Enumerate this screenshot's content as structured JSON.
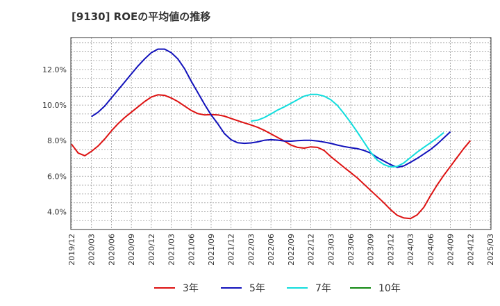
{
  "chart_data": {
    "type": "line",
    "title": "[9130]  ROEの平均値の推移",
    "xlabel": "",
    "ylabel": "",
    "ylim": [
      3.0,
      13.8
    ],
    "yticks": [
      {
        "value": 4.0,
        "label": "4.0%"
      },
      {
        "value": 6.0,
        "label": "6.0%"
      },
      {
        "value": 8.0,
        "label": "8.0%"
      },
      {
        "value": 10.0,
        "label": "10.0%"
      },
      {
        "value": 12.0,
        "label": "12.0%"
      }
    ],
    "xticks": [
      "2019/12",
      "2020/03",
      "2020/06",
      "2020/09",
      "2020/12",
      "2021/03",
      "2021/06",
      "2021/09",
      "2021/12",
      "2022/03",
      "2022/06",
      "2022/09",
      "2022/12",
      "2023/03",
      "2023/06",
      "2023/09",
      "2023/12",
      "2024/03",
      "2024/06",
      "2024/09",
      "2024/12",
      "2025/03"
    ],
    "grid": true,
    "legend_position": "bottom",
    "series": [
      {
        "name": "3年",
        "color": "#dd1111",
        "start_index": 0,
        "values": [
          7.8,
          7.3,
          7.15,
          7.4,
          7.7,
          8.1,
          8.55,
          8.95,
          9.3,
          9.6,
          9.9,
          10.2,
          10.45,
          10.58,
          10.55,
          10.4,
          10.2,
          9.95,
          9.7,
          9.52,
          9.45,
          9.47,
          9.45,
          9.38,
          9.25,
          9.12,
          9.0,
          8.88,
          8.75,
          8.58,
          8.38,
          8.18,
          7.98,
          7.75,
          7.62,
          7.58,
          7.65,
          7.62,
          7.45,
          7.1,
          6.8,
          6.5,
          6.2,
          5.9,
          5.55,
          5.2,
          4.85,
          4.5,
          4.12,
          3.8,
          3.65,
          3.62,
          3.82,
          4.25,
          4.9,
          5.5,
          6.05,
          6.55,
          7.05,
          7.55,
          8.0
        ]
      },
      {
        "name": "5年",
        "color": "#1111bb",
        "start_index": 3,
        "values": [
          9.35,
          9.6,
          9.95,
          10.4,
          10.85,
          11.3,
          11.75,
          12.2,
          12.6,
          12.95,
          13.15,
          13.15,
          12.95,
          12.6,
          12.05,
          11.35,
          10.7,
          10.05,
          9.45,
          8.95,
          8.4,
          8.05,
          7.88,
          7.85,
          7.87,
          7.93,
          8.02,
          8.05,
          8.03,
          7.98,
          7.97,
          8.0,
          8.02,
          8.02,
          7.98,
          7.92,
          7.85,
          7.75,
          7.67,
          7.6,
          7.55,
          7.45,
          7.3,
          7.05,
          6.85,
          6.65,
          6.5,
          6.58,
          6.78,
          7.0,
          7.25,
          7.5,
          7.8,
          8.15,
          8.5
        ]
      },
      {
        "name": "7年",
        "color": "#11dddd",
        "start_index": 27,
        "values": [
          9.1,
          9.15,
          9.3,
          9.5,
          9.72,
          9.9,
          10.1,
          10.3,
          10.5,
          10.6,
          10.6,
          10.5,
          10.3,
          9.98,
          9.52,
          9.02,
          8.48,
          7.92,
          7.35,
          6.9,
          6.65,
          6.52,
          6.55,
          6.75,
          7.05,
          7.35,
          7.62,
          7.88,
          8.15,
          8.45
        ]
      },
      {
        "name": "10年",
        "color": "#118811",
        "start_index": 0,
        "values": []
      }
    ]
  }
}
